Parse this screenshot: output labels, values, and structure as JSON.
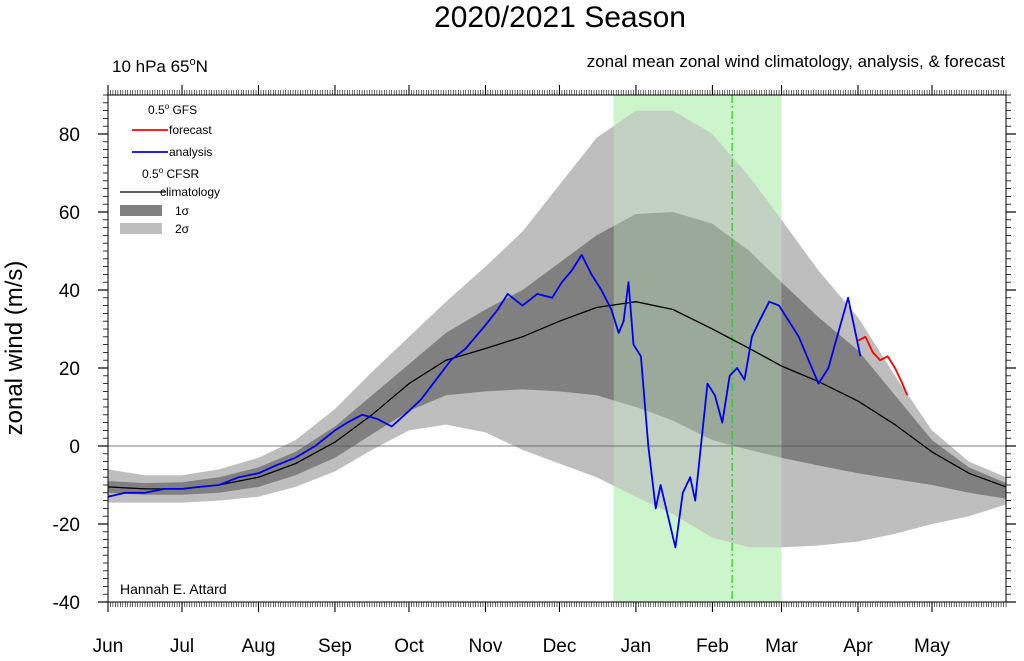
{
  "chart_data": {
    "type": "line",
    "title": "2020/2021 Season",
    "subtitle_left_main": "10 hPa 65",
    "subtitle_left_sup": "o",
    "subtitle_left_tail": "N",
    "subtitle_right": "zonal mean zonal wind climatology, analysis, & forecast",
    "ylabel": "zonal wind (m/s)",
    "author": "Hannah E. Attard",
    "x_axis": {
      "range": [
        "2020-06-01",
        "2021-05-31"
      ],
      "month_labels": [
        "Jun",
        "Jul",
        "Aug",
        "Sep",
        "Oct",
        "Nov",
        "Dec",
        "Jan",
        "Feb",
        "Mar",
        "Apr",
        "May"
      ]
    },
    "y_axis": {
      "range": [
        -40,
        90
      ],
      "ticks": [
        -40,
        -20,
        0,
        20,
        40,
        60,
        80
      ]
    },
    "legend": {
      "placement": "top-left",
      "gfs_header_main": "0.5",
      "gfs_header_sup": "o",
      "gfs_header_tail": "  GFS",
      "forecast_label": "forecast",
      "analysis_label": "analysis",
      "cfsr_header_main": "0.5",
      "cfsr_header_sup": "o",
      "cfsr_header_tail": " CFSR",
      "climatology_label": "climatology",
      "sigma1_label": "1σ",
      "sigma2_label": "2σ"
    },
    "colors": {
      "forecast": "#ff0000",
      "analysis": "#0000ee",
      "climatology": "#000000",
      "sigma1": "#808080",
      "sigma2": "#bebebe",
      "highlight": "#ccf5cc",
      "highlight_line": "#22cc22"
    },
    "highlight_period": {
      "start": "2020-12-23",
      "end": "2021-03-01"
    },
    "highlight_marker_date": "2021-02-09",
    "climatology": {
      "dates": [
        "2020-06-01",
        "2020-06-16",
        "2020-07-01",
        "2020-07-16",
        "2020-08-01",
        "2020-08-16",
        "2020-09-01",
        "2020-09-16",
        "2020-10-01",
        "2020-10-16",
        "2020-11-01",
        "2020-11-16",
        "2020-12-01",
        "2020-12-16",
        "2021-01-01",
        "2021-01-16",
        "2021-02-01",
        "2021-02-16",
        "2021-03-01",
        "2021-03-16",
        "2021-04-01",
        "2021-04-16",
        "2021-05-01",
        "2021-05-16",
        "2021-05-31"
      ],
      "mean": [
        -10.5,
        -11,
        -11,
        -10,
        -8,
        -4.5,
        1,
        8,
        16,
        22,
        25,
        28,
        32,
        35.5,
        37,
        35,
        30,
        25,
        20.5,
        16.5,
        11.5,
        5.5,
        -1.5,
        -7,
        -10.5
      ],
      "sd1_hi": [
        -9,
        -9.5,
        -9.3,
        -8,
        -5.5,
        -1.5,
        5,
        13,
        21,
        29,
        35,
        40,
        47,
        54,
        59.5,
        60,
        57,
        50,
        42,
        33,
        24.5,
        13,
        1.5,
        -5.5,
        -9.5
      ],
      "sd1_lo": [
        -12,
        -12.5,
        -12.5,
        -12,
        -10.5,
        -7.5,
        -3,
        3,
        9,
        13,
        14,
        14.5,
        14,
        13,
        10,
        6.5,
        1.5,
        -1,
        -3,
        -5,
        -7,
        -8.5,
        -10,
        -12,
        -13.5
      ],
      "sd2_hi": [
        -6,
        -7.5,
        -7.5,
        -6,
        -3,
        1.5,
        9.5,
        19,
        28,
        37,
        46,
        55,
        67,
        79,
        86,
        86,
        80,
        69,
        58,
        45,
        33,
        18,
        4,
        -4,
        -8
      ],
      "sd2_lo": [
        -14.5,
        -14.5,
        -14.5,
        -14,
        -13,
        -10.5,
        -6.5,
        -1,
        4,
        5.5,
        3.5,
        -1,
        -4.5,
        -8,
        -13,
        -17.5,
        -23.5,
        -26,
        -26,
        -25.5,
        -24.5,
        -22.5,
        -20,
        -18,
        -15
      ]
    },
    "analysis": {
      "dates": [
        "2020-06-01",
        "2020-06-08",
        "2020-06-16",
        "2020-06-24",
        "2020-07-01",
        "2020-07-08",
        "2020-07-16",
        "2020-07-24",
        "2020-08-01",
        "2020-08-08",
        "2020-08-16",
        "2020-08-24",
        "2020-09-01",
        "2020-09-06",
        "2020-09-12",
        "2020-09-18",
        "2020-09-24",
        "2020-10-01",
        "2020-10-06",
        "2020-10-12",
        "2020-10-18",
        "2020-10-24",
        "2020-11-01",
        "2020-11-06",
        "2020-11-10",
        "2020-11-16",
        "2020-11-22",
        "2020-11-28",
        "2020-12-02",
        "2020-12-06",
        "2020-12-10",
        "2020-12-14",
        "2020-12-18",
        "2020-12-22",
        "2020-12-25",
        "2020-12-27",
        "2020-12-29",
        "2020-12-31",
        "2021-01-03",
        "2021-01-06",
        "2021-01-09",
        "2021-01-11",
        "2021-01-14",
        "2021-01-17",
        "2021-01-20",
        "2021-01-23",
        "2021-01-25",
        "2021-01-27",
        "2021-01-30",
        "2021-02-02",
        "2021-02-05",
        "2021-02-08",
        "2021-02-11",
        "2021-02-14",
        "2021-02-17",
        "2021-02-20",
        "2021-02-24",
        "2021-02-28",
        "2021-03-04",
        "2021-03-08",
        "2021-03-12",
        "2021-03-16",
        "2021-03-20",
        "2021-03-24",
        "2021-03-28",
        "2021-04-02"
      ],
      "values": [
        -13,
        -12,
        -12,
        -11,
        -11,
        -10.5,
        -10,
        -8,
        -7,
        -5,
        -3,
        0,
        4,
        6,
        8,
        7,
        5,
        9,
        12,
        17,
        22,
        25,
        31,
        35,
        39,
        36,
        39,
        38,
        42,
        45,
        49,
        44,
        40,
        35,
        29,
        32,
        42,
        26,
        23,
        0,
        -16,
        -10,
        -18,
        -26,
        -12,
        -8,
        -14,
        -2,
        16,
        13,
        6,
        18,
        20,
        17,
        28,
        32,
        37,
        36,
        32,
        28,
        22,
        16,
        20,
        29,
        38,
        23
      ]
    },
    "forecast": {
      "dates": [
        "2021-04-01",
        "2021-04-04",
        "2021-04-07",
        "2021-04-10",
        "2021-04-13",
        "2021-04-16",
        "2021-04-19",
        "2021-04-21"
      ],
      "values": [
        27,
        28,
        24,
        22,
        23,
        20,
        16,
        13
      ]
    }
  }
}
